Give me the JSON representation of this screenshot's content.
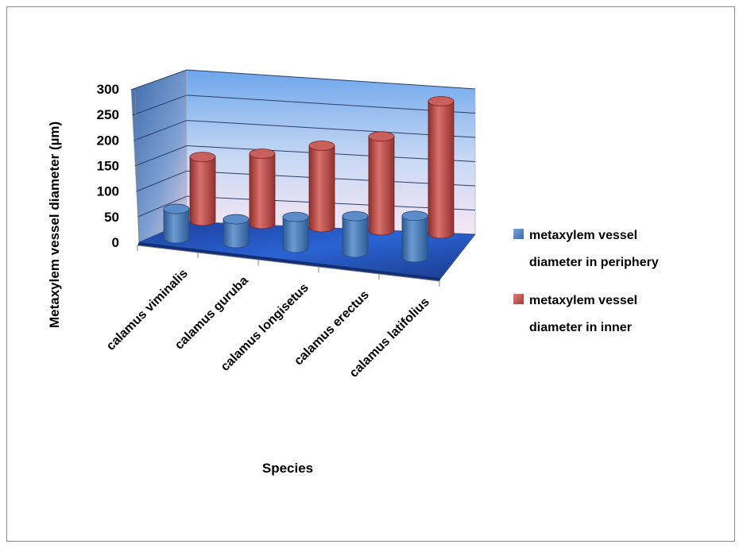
{
  "chart_data": {
    "type": "bar",
    "categories": [
      "calamus viminalis",
      "calamus guruba",
      "calamus longisetus",
      "calamus erectus",
      "calamus latifolius"
    ],
    "series": [
      {
        "name": "metaxylem vessel diameter in periphery",
        "values": [
          58,
          47,
          61,
          72,
          82
        ],
        "color": "#4f81bd"
      },
      {
        "name": "metaxylem vessel diameter in inner",
        "values": [
          138,
          152,
          176,
          203,
          286
        ],
        "color": "#c0504d"
      }
    ],
    "xlabel": "Species",
    "ylabel": "Metaxylem vessel diameter (µm)",
    "ylim": [
      0,
      300
    ],
    "yticks": [
      0,
      50,
      100,
      150,
      200,
      250,
      300
    ],
    "grid": true,
    "legend_position": "right",
    "style": "3d-cylinder"
  }
}
